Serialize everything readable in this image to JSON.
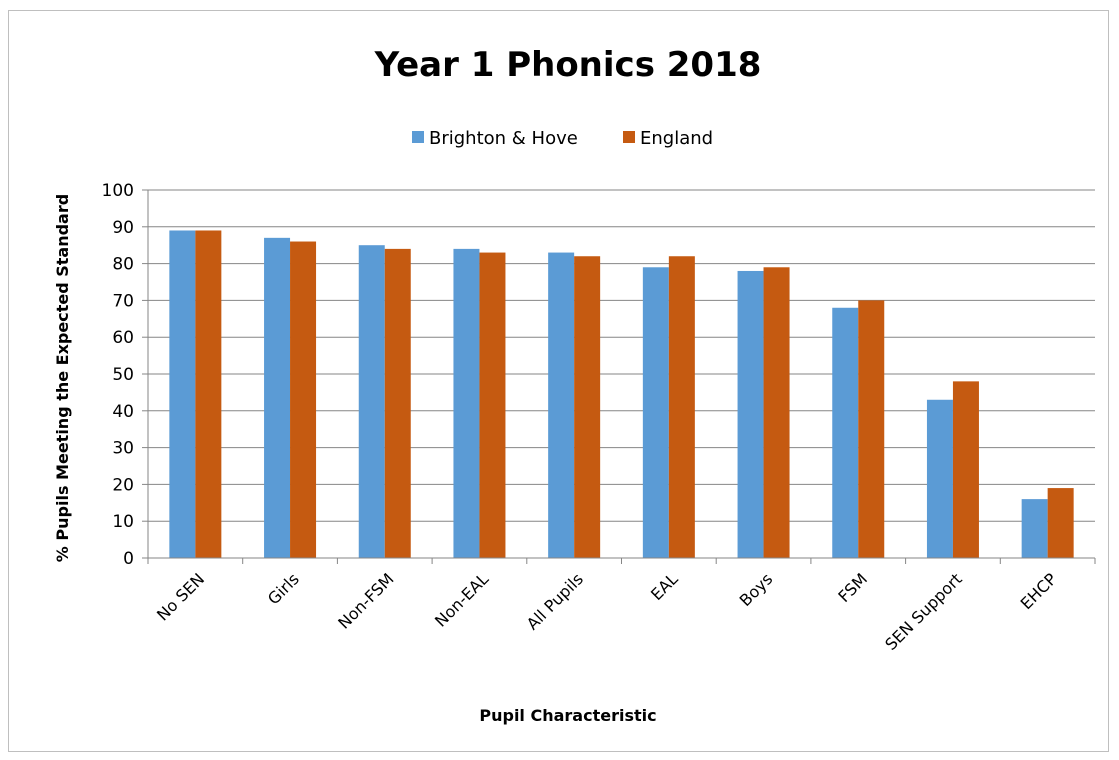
{
  "chart_data": {
    "type": "bar",
    "title": "Year 1 Phonics 2018",
    "xlabel": "Pupil Characteristic",
    "ylabel": "% Pupils Meeting the Expected Standard",
    "ylim": [
      0,
      100
    ],
    "yticks": [
      0,
      10,
      20,
      30,
      40,
      50,
      60,
      70,
      80,
      90,
      100
    ],
    "grid": true,
    "legend_position": "top",
    "categories": [
      "No SEN",
      "Girls",
      "Non-FSM",
      "Non-EAL",
      "All Pupils",
      "EAL",
      "Boys",
      "FSM",
      "SEN Support",
      "EHCP"
    ],
    "series": [
      {
        "name": "Brighton & Hove",
        "color": "#5b9bd5",
        "values": [
          89,
          87,
          85,
          84,
          83,
          79,
          78,
          68,
          43,
          16
        ]
      },
      {
        "name": "England",
        "color": "#c55a11",
        "values": [
          89,
          86,
          84,
          83,
          82,
          82,
          79,
          70,
          48,
          19
        ]
      }
    ]
  }
}
